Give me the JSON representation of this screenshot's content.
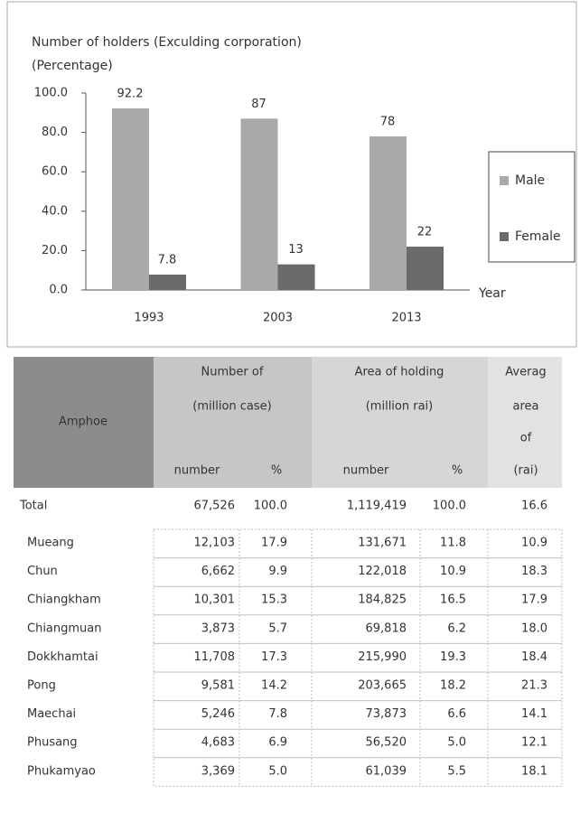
{
  "chart_data": {
    "type": "bar",
    "title": "Number of holders (Exculding corporation)",
    "subtitle": "(Percentage)",
    "categories": [
      "1993",
      "2003",
      "2013"
    ],
    "series": [
      {
        "name": "Male",
        "color": "#a9a9a9",
        "values": [
          92.2,
          87,
          78
        ]
      },
      {
        "name": "Female",
        "color": "#6a6a6a",
        "values": [
          7.8,
          13,
          22
        ]
      }
    ],
    "x_label": "Year",
    "ylim": [
      0,
      100
    ],
    "yticks": [
      {
        "value": 0,
        "label": "0.0"
      },
      {
        "value": 20,
        "label": "20.0"
      },
      {
        "value": 40,
        "label": "40.0"
      },
      {
        "value": 60,
        "label": "60.0"
      },
      {
        "value": 80,
        "label": "80.0"
      },
      {
        "value": 100,
        "label": "100.0"
      }
    ],
    "legend": "right"
  },
  "table": {
    "headers": {
      "amphoe": "Amphoe",
      "number_of": [
        "Number of",
        "(million case)"
      ],
      "area": [
        "Area of holding",
        "(million rai)"
      ],
      "average": [
        "Averag",
        "area",
        "of",
        "(rai)"
      ],
      "sub": [
        "number",
        "%",
        "number",
        "%"
      ]
    },
    "rows": [
      [
        "Total",
        "67,526",
        "100.0",
        "1,119,419",
        "100.0",
        "16.6"
      ],
      [
        "Mueang",
        "12,103",
        "17.9",
        "131,671",
        "11.8",
        "10.9"
      ],
      [
        "Chun",
        "6,662",
        "9.9",
        "122,018",
        "10.9",
        "18.3"
      ],
      [
        "Chiangkham",
        "10,301",
        "15.3",
        "184,825",
        "16.5",
        "17.9"
      ],
      [
        "Chiangmuan",
        "3,873",
        "5.7",
        "69,818",
        "6.2",
        "18.0"
      ],
      [
        "Dokkhamtai",
        "11,708",
        "17.3",
        "215,990",
        "19.3",
        "18.4"
      ],
      [
        "Pong",
        "9,581",
        "14.2",
        "203,665",
        "18.2",
        "21.3"
      ],
      [
        "Maechai",
        "5,246",
        "7.8",
        "73,873",
        "6.6",
        "14.1"
      ],
      [
        "Phusang",
        "4,683",
        "6.9",
        "56,520",
        "5.0",
        "12.1"
      ],
      [
        "Phukamyao",
        "3,369",
        "5.0",
        "61,039",
        "5.5",
        "18.1"
      ]
    ]
  }
}
